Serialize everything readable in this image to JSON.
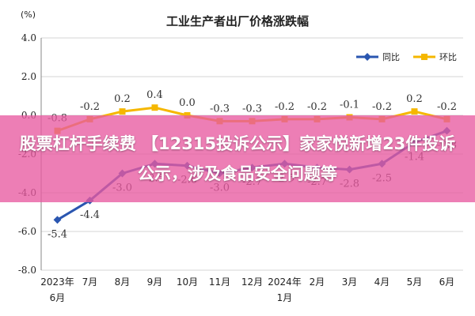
{
  "chart_data": {
    "type": "line",
    "title": "工业生产者出厂价格涨跌幅",
    "unit": "(%)",
    "ylim": [
      -8.0,
      4.0
    ],
    "yticks": [
      "4.0",
      "2.0",
      "0.0",
      "-2.0",
      "-4.0",
      "-6.0",
      "-8.0"
    ],
    "ytick_values": [
      4,
      2,
      0,
      -2,
      -4,
      -6,
      -8
    ],
    "categories": [
      [
        "2023年",
        "6月"
      ],
      [
        "7月"
      ],
      [
        "8月"
      ],
      [
        "9月"
      ],
      [
        "10月"
      ],
      [
        "11月"
      ],
      [
        "12月"
      ],
      [
        "2024年",
        "1月"
      ],
      [
        "2月"
      ],
      [
        "3月"
      ],
      [
        "4月"
      ],
      [
        "5月"
      ],
      [
        "6月"
      ]
    ],
    "grid": "horizontal",
    "legend_position": "top-right",
    "series": [
      {
        "name": "同比",
        "color": "#2a56b0",
        "values": [
          -5.4,
          -4.4,
          -3.0,
          -2.5,
          -2.6,
          -3.0,
          -2.7,
          -2.5,
          -2.7,
          -2.8,
          -2.5,
          -1.4,
          -0.8
        ],
        "labels": [
          "-5.4",
          "-4.4",
          "-3.0",
          "-2.5",
          "-2.6",
          "-3.0",
          "-2.7",
          "-2.5",
          "-2.7",
          "-2.8",
          "-2.5",
          "-1.4",
          "-0.8"
        ]
      },
      {
        "name": "环比",
        "color": "#f5b700",
        "values": [
          -0.8,
          -0.2,
          0.2,
          0.4,
          0.0,
          -0.3,
          -0.3,
          -0.2,
          -0.2,
          -0.1,
          -0.2,
          0.2,
          -0.2
        ],
        "labels": [
          "-0.8",
          "-0.2",
          "0.2",
          "0.4",
          "0.0",
          "-0.3",
          "-0.3",
          "-0.2",
          "-0.2",
          "-0.1",
          "-0.2",
          "0.2",
          "-0.2"
        ]
      }
    ]
  },
  "banner": {
    "text": "股票杠杆手续费 【12315投诉公示】家家悦新增23件投诉公示，涉及食品安全问题等",
    "color": "#e85aa0"
  }
}
